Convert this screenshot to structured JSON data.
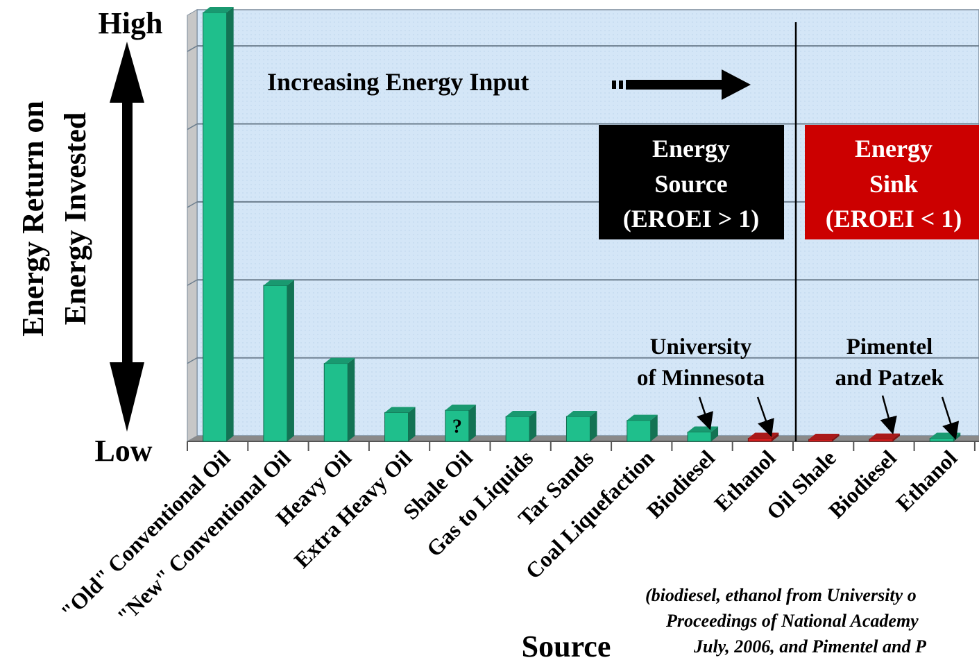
{
  "chart_data": {
    "type": "bar",
    "categories": [
      "\"Old\" Conventional Oil",
      "\"New\" Conventional Oil",
      "Heavy Oil",
      "Extra Heavy Oil",
      "Shale Oil",
      "Gas to Liquids",
      "Tar Sands",
      "Coal Liquefaction",
      "Biodiesel",
      "Ethanol",
      "Oil Shale",
      "Biodiesel",
      "Ethanol"
    ],
    "values": [
      5.5,
      2.0,
      1.0,
      0.37,
      0.4,
      0.32,
      0.32,
      0.27,
      0.12,
      0.04,
      0.02,
      0.03,
      0.04
    ],
    "bar_colors": [
      "#1fbf8c",
      "#1fbf8c",
      "#1fbf8c",
      "#1fbf8c",
      "#1fbf8c",
      "#1fbf8c",
      "#1fbf8c",
      "#1fbf8c",
      "#1fbf8c",
      "#d41f1f",
      "#d41f1f",
      "#d41f1f",
      "#1fbf8c"
    ],
    "bar_labels": [
      "",
      "",
      "",
      "",
      "?",
      "",
      "",
      "",
      "",
      "",
      "",
      "",
      ""
    ],
    "ylim": [
      0,
      5.5
    ],
    "gridlines": [
      1,
      2,
      3,
      4,
      5
    ],
    "grid": true,
    "xlabel": "Source",
    "ylabel_line1": "Energy Return on",
    "ylabel_line2": "Energy Invested",
    "y_high_label": "High",
    "y_low_label": "Low",
    "arrow_text": "Increasing Energy Input",
    "divider_after_index": 9,
    "source_box": {
      "line1": "Energy",
      "line2": "Source",
      "line3": "(EROEI > 1)",
      "color": "#000000"
    },
    "sink_box": {
      "line1": "Energy",
      "line2": "Sink",
      "line3": "(EROEI < 1)",
      "color": "#cc0000"
    },
    "annotation_minnesota": {
      "line1": "University",
      "line2": "of Minnesota"
    },
    "annotation_pimentel": {
      "line1": "Pimentel",
      "line2": "and Patzek"
    },
    "footnote": {
      "line1": "(biodiesel, ethanol from University o",
      "line2": "Proceedings of National Academy",
      "line3": "July, 2006, and Pimentel and P"
    },
    "colors": {
      "plot_bg": "#d4e6f7",
      "grid": "#6c7e8e",
      "bar_green": "#1fbf8c",
      "bar_red": "#d41f1f"
    }
  }
}
